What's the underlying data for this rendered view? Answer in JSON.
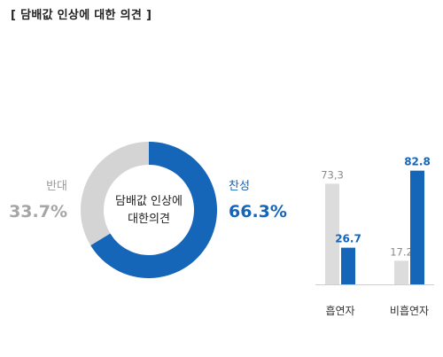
{
  "page": {
    "title": "[ 담배값 인상에 대한 의견 ]"
  },
  "chart_data": [
    {
      "type": "pie",
      "center_label": [
        "담배값 인상에",
        "대한의견"
      ],
      "slices": [
        {
          "label": "찬성",
          "value": 66.3,
          "value_label": "66.3%",
          "color": "#1565b8"
        },
        {
          "label": "반대",
          "value": 33.7,
          "value_label": "33.7%",
          "color": "#d4d4d4"
        }
      ]
    },
    {
      "type": "bar",
      "categories": [
        "흡연자",
        "비흡연자"
      ],
      "series": [
        {
          "values": [
            73.3,
            17.2
          ],
          "value_labels": [
            "73,3",
            "17.2"
          ],
          "color": "#dcdcdc"
        },
        {
          "values": [
            26.7,
            82.8
          ],
          "value_labels": [
            "26.7",
            "82.8"
          ],
          "color": "#1565b8"
        }
      ],
      "ylim": [
        0,
        100
      ]
    }
  ]
}
